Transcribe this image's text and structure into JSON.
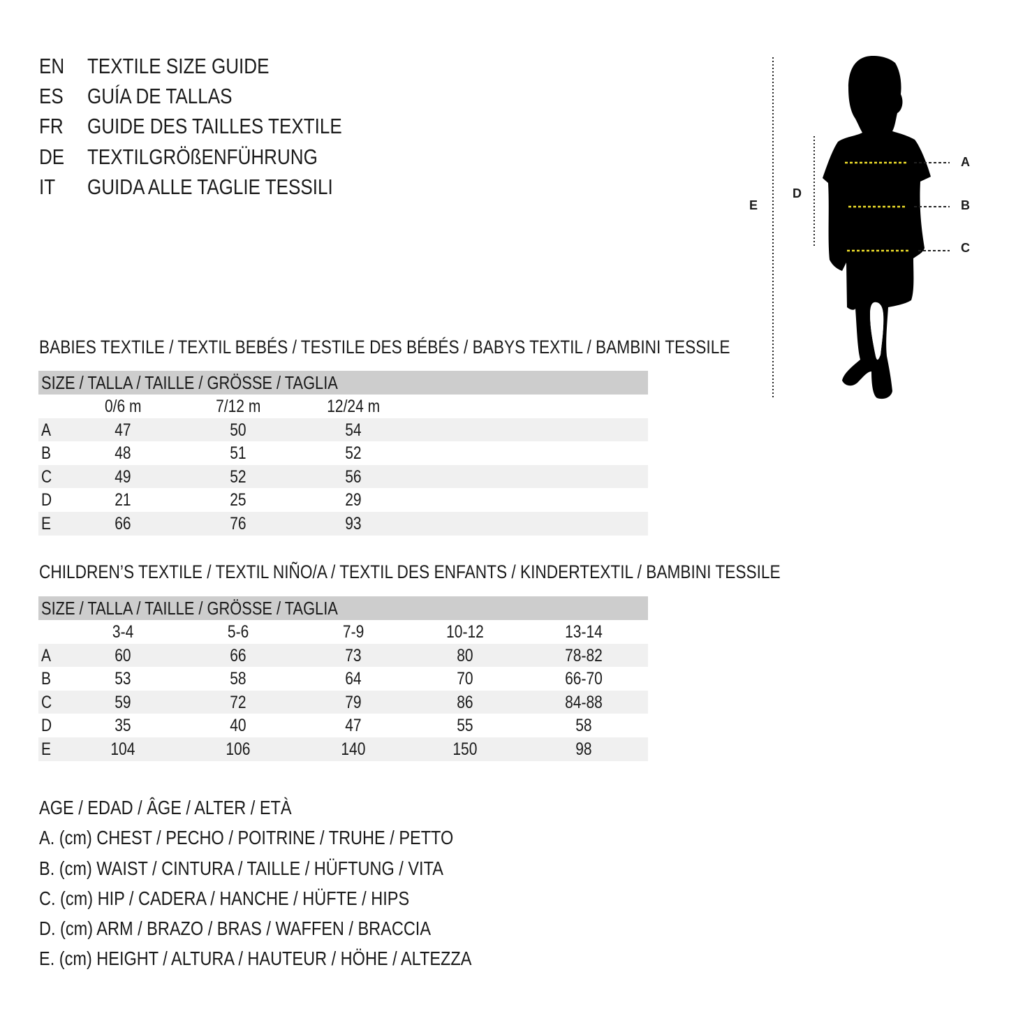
{
  "titles": [
    {
      "code": "EN",
      "text": "TEXTILE SIZE GUIDE"
    },
    {
      "code": "ES",
      "text": "GUÍA DE TALLAS"
    },
    {
      "code": "FR",
      "text": "GUIDE DES TAILLES TEXTILE"
    },
    {
      "code": "DE",
      "text": "TEXTILGRÖßENFÜHRUNG"
    },
    {
      "code": "IT",
      "text": "GUIDA ALLE TAGLIE TESSILI"
    }
  ],
  "figure": {
    "labels": {
      "a": "A",
      "b": "B",
      "c": "C",
      "d": "D",
      "e": "E"
    },
    "colors": {
      "silhouette": "#000000",
      "measure_line": "#f2e12b"
    }
  },
  "babies": {
    "title": "BABIES TEXTILE / TEXTIL BEBÉS / TESTILE DES BÉBÉS / BABYS TEXTIL / BAMBINI TESSILE",
    "header": "SIZE / TALLA / TAILLE / GRÖSSE / TAGLIA",
    "columns": [
      "0/6 m",
      "7/12 m",
      "12/24 m"
    ],
    "rows": [
      {
        "label": "A",
        "values": [
          "47",
          "50",
          "54"
        ]
      },
      {
        "label": "B",
        "values": [
          "48",
          "51",
          "52"
        ]
      },
      {
        "label": "C",
        "values": [
          "49",
          "52",
          "56"
        ]
      },
      {
        "label": "D",
        "values": [
          "21",
          "25",
          "29"
        ]
      },
      {
        "label": "E",
        "values": [
          "66",
          "76",
          "93"
        ]
      }
    ]
  },
  "children": {
    "title": "CHILDREN’S TEXTILE / TEXTIL NIÑO/A / TEXTIL DES ENFANTS / KINDERTEXTIL / BAMBINI TESSILE",
    "header": "SIZE / TALLA / TAILLE / GRÖSSE / TAGLIA",
    "columns": [
      "3-4",
      "5-6",
      "7-9",
      "10-12",
      "13-14"
    ],
    "rows": [
      {
        "label": "A",
        "values": [
          "60",
          "66",
          "73",
          "80",
          "78-82"
        ]
      },
      {
        "label": "B",
        "values": [
          "53",
          "58",
          "64",
          "70",
          "66-70"
        ]
      },
      {
        "label": "C",
        "values": [
          "59",
          "72",
          "79",
          "86",
          "84-88"
        ]
      },
      {
        "label": "D",
        "values": [
          "35",
          "40",
          "47",
          "55",
          "58"
        ]
      },
      {
        "label": "E",
        "values": [
          "104",
          "106",
          "140",
          "150",
          "98"
        ]
      }
    ]
  },
  "legend": [
    "AGE / EDAD / ÂGE / ALTER / ETÀ",
    "A. (cm) CHEST / PECHO / POITRINE / TRUHE / PETTO",
    "B. (cm) WAIST / CINTURA / TAILLE / HÜFTUNG / VITA",
    "C. (cm) HIP / CADERA / HANCHE / HÜFTE / HIPS",
    "D. (cm) ARM / BRAZO / BRAS / WAFFEN / BRACCIA",
    "E. (cm) HEIGHT / ALTURA / HAUTEUR / HÖHE / ALTEZZA"
  ]
}
